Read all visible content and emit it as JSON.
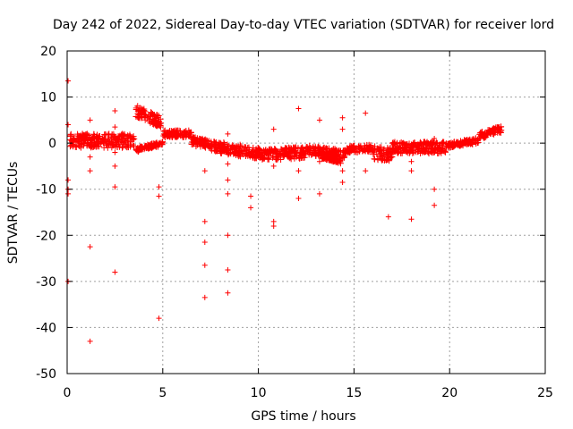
{
  "chart_data": {
    "type": "scatter",
    "title": "Day 242 of 2022, Sidereal Day-to-day VTEC variation (SDTVAR) for receiver lord",
    "xlabel": "GPS time / hours",
    "ylabel": "SDTVAR / TECUs",
    "xlim": [
      0,
      25
    ],
    "ylim": [
      -50,
      20
    ],
    "xticks": [
      0,
      5,
      10,
      15,
      20,
      25
    ],
    "yticks": [
      -50,
      -40,
      -30,
      -20,
      -10,
      0,
      10,
      20
    ],
    "xtick_labels": [
      "0",
      "5",
      "10",
      "15",
      "20",
      "25"
    ],
    "ytick_labels": [
      "-50",
      "-40",
      "-30",
      "-20",
      "-10",
      "0",
      "10",
      "20"
    ],
    "grid": true,
    "legend": "none",
    "marker": "+",
    "series_color": "#ff0000",
    "band_series": [
      {
        "x_start": 0.15,
        "x_end": 3.5,
        "y_at_start": 0.5,
        "y_at_end": 0.5,
        "spread": 3.0
      },
      {
        "x_start": 3.6,
        "x_end": 4.9,
        "y_at_start": 7.0,
        "y_at_end": 4.5,
        "spread": 2.5
      },
      {
        "x_start": 3.6,
        "x_end": 5.0,
        "y_at_start": -1.5,
        "y_at_end": 0.0,
        "spread": 1.0
      },
      {
        "x_start": 5.0,
        "x_end": 6.5,
        "y_at_start": 2.0,
        "y_at_end": 2.0,
        "spread": 1.5
      },
      {
        "x_start": 6.5,
        "x_end": 8.0,
        "y_at_start": 0.5,
        "y_at_end": -1.0,
        "spread": 2.0
      },
      {
        "x_start": 8.0,
        "x_end": 10.5,
        "y_at_start": -1.0,
        "y_at_end": -2.5,
        "spread": 2.5
      },
      {
        "x_start": 10.5,
        "x_end": 12.5,
        "y_at_start": -2.5,
        "y_at_end": -2.0,
        "spread": 2.5
      },
      {
        "x_start": 12.5,
        "x_end": 14.5,
        "y_at_start": -1.5,
        "y_at_end": -2.5,
        "spread": 2.0
      },
      {
        "x_start": 13.3,
        "x_end": 14.3,
        "y_at_start": -3.0,
        "y_at_end": -4.0,
        "spread": 0.8
      },
      {
        "x_start": 14.5,
        "x_end": 16.0,
        "y_at_start": -1.5,
        "y_at_end": -1.0,
        "spread": 1.5
      },
      {
        "x_start": 16.0,
        "x_end": 17.0,
        "y_at_start": -2.0,
        "y_at_end": -2.5,
        "spread": 3.0
      },
      {
        "x_start": 17.0,
        "x_end": 19.8,
        "y_at_start": -1.0,
        "y_at_end": -1.0,
        "spread": 2.5
      },
      {
        "x_start": 19.8,
        "x_end": 21.5,
        "y_at_start": -0.5,
        "y_at_end": 0.5,
        "spread": 1.2
      },
      {
        "x_start": 21.5,
        "x_end": 22.7,
        "y_at_start": 1.5,
        "y_at_end": 3.0,
        "spread": 1.5
      }
    ],
    "outliers": [
      {
        "x": 0.05,
        "y": 13.5
      },
      {
        "x": 0.05,
        "y": 4.0
      },
      {
        "x": 0.05,
        "y": -8.0
      },
      {
        "x": 0.05,
        "y": -10.0
      },
      {
        "x": 0.05,
        "y": -11.0
      },
      {
        "x": 0.05,
        "y": -30.0
      },
      {
        "x": 1.2,
        "y": 5.0
      },
      {
        "x": 1.2,
        "y": -3.0
      },
      {
        "x": 1.2,
        "y": -6.0
      },
      {
        "x": 1.2,
        "y": -22.5
      },
      {
        "x": 1.2,
        "y": -43.0
      },
      {
        "x": 2.5,
        "y": 7.0
      },
      {
        "x": 2.5,
        "y": 3.5
      },
      {
        "x": 2.5,
        "y": -2.0
      },
      {
        "x": 2.5,
        "y": -5.0
      },
      {
        "x": 2.5,
        "y": -9.5
      },
      {
        "x": 2.5,
        "y": -28.0
      },
      {
        "x": 4.8,
        "y": -9.5
      },
      {
        "x": 4.8,
        "y": -11.5
      },
      {
        "x": 4.8,
        "y": -38.0
      },
      {
        "x": 7.2,
        "y": -6.0
      },
      {
        "x": 7.2,
        "y": -17.0
      },
      {
        "x": 7.2,
        "y": -21.5
      },
      {
        "x": 7.2,
        "y": -26.5
      },
      {
        "x": 7.2,
        "y": -33.5
      },
      {
        "x": 8.4,
        "y": 2.0
      },
      {
        "x": 8.4,
        "y": -4.5
      },
      {
        "x": 8.4,
        "y": -8.0
      },
      {
        "x": 8.4,
        "y": -11.0
      },
      {
        "x": 8.4,
        "y": -20.0
      },
      {
        "x": 8.4,
        "y": -27.5
      },
      {
        "x": 8.4,
        "y": -32.5
      },
      {
        "x": 9.6,
        "y": -11.5
      },
      {
        "x": 9.6,
        "y": -14.0
      },
      {
        "x": 10.8,
        "y": 3.0
      },
      {
        "x": 10.8,
        "y": -5.0
      },
      {
        "x": 10.8,
        "y": -17.0
      },
      {
        "x": 10.8,
        "y": -18.0
      },
      {
        "x": 12.1,
        "y": 7.5
      },
      {
        "x": 12.1,
        "y": -6.0
      },
      {
        "x": 12.1,
        "y": -12.0
      },
      {
        "x": 13.2,
        "y": 5.0
      },
      {
        "x": 13.2,
        "y": -4.0
      },
      {
        "x": 13.2,
        "y": -11.0
      },
      {
        "x": 14.4,
        "y": 5.5
      },
      {
        "x": 14.4,
        "y": 3.0
      },
      {
        "x": 14.4,
        "y": -6.0
      },
      {
        "x": 14.4,
        "y": -8.5
      },
      {
        "x": 15.6,
        "y": 6.5
      },
      {
        "x": 15.6,
        "y": -6.0
      },
      {
        "x": 16.8,
        "y": -16.0
      },
      {
        "x": 18.0,
        "y": -4.0
      },
      {
        "x": 18.0,
        "y": -6.0
      },
      {
        "x": 18.0,
        "y": -16.5
      },
      {
        "x": 19.2,
        "y": 1.0
      },
      {
        "x": 19.2,
        "y": -10.0
      },
      {
        "x": 19.2,
        "y": -13.5
      }
    ]
  }
}
